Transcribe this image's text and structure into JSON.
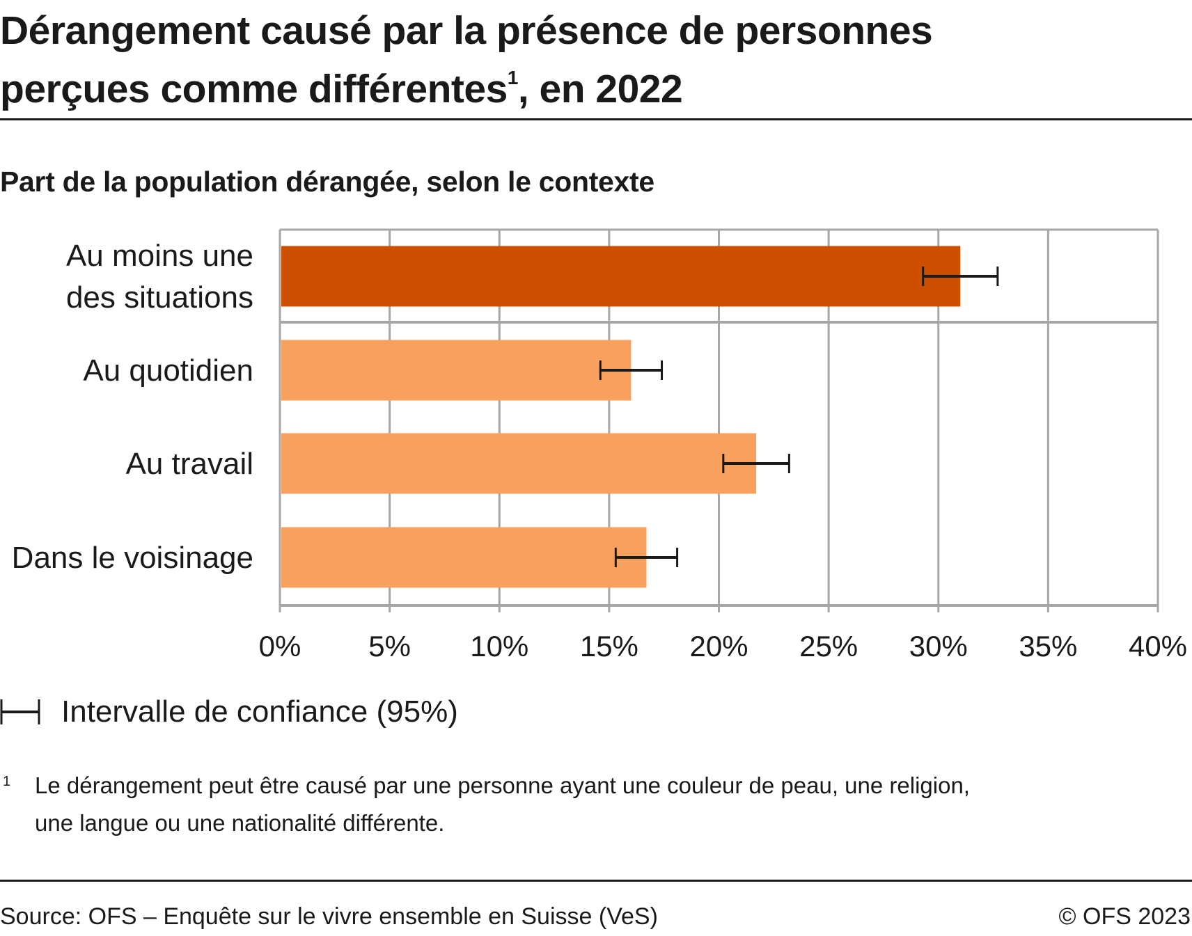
{
  "header": {
    "title_line1": "Dérangement causé par la présence de personnes",
    "title_line2_pre": "perçues comme différentes",
    "title_sup": "1",
    "title_line2_post": ", en 2022",
    "subtitle": "Part de la population dérangée, selon le contexte"
  },
  "legend": {
    "icon": "error-bar-icon",
    "label": "Intervalle de confiance (95%)"
  },
  "footnote": {
    "mark": "1",
    "line1": "Le dérangement peut être causé par une personne ayant une couleur de peau, une religion,",
    "line2": "une langue ou une nationalité différente."
  },
  "footer": {
    "source": "Source: OFS – Enquête sur le vivre ensemble en Suisse (VeS)",
    "copyright": "© OFS 2023"
  },
  "chart_data": {
    "type": "bar",
    "orientation": "horizontal",
    "title": "Dérangement causé par la présence de personnes perçues comme différentes, en 2022",
    "subtitle": "Part de la population dérangée, selon le contexte",
    "categories": [
      [
        "Au moins une",
        "des situations"
      ],
      [
        "Au quotidien"
      ],
      [
        "Au travail"
      ],
      [
        "Dans le voisinage"
      ]
    ],
    "values": [
      31.0,
      16.0,
      21.7,
      16.7
    ],
    "ci_low": [
      29.3,
      14.6,
      20.2,
      15.3
    ],
    "ci_high": [
      32.7,
      17.4,
      23.2,
      18.1
    ],
    "colors": [
      "#cc5000",
      "#f8a05e",
      "#f8a05e",
      "#f8a05e"
    ],
    "xlim": [
      0,
      40
    ],
    "xticks": [
      0,
      5,
      10,
      15,
      20,
      25,
      30,
      35,
      40
    ],
    "xtick_labels": [
      "0%",
      "5%",
      "10%",
      "15%",
      "20%",
      "25%",
      "30%",
      "35%",
      "40%"
    ],
    "xlabel": "",
    "ylabel": "",
    "grid": true,
    "legend": "bottom-left",
    "legend_entries": [
      "Intervalle de confiance (95%)"
    ],
    "grid_color": "#a6a6a6",
    "errorbar_color": "#1a1a1a"
  }
}
